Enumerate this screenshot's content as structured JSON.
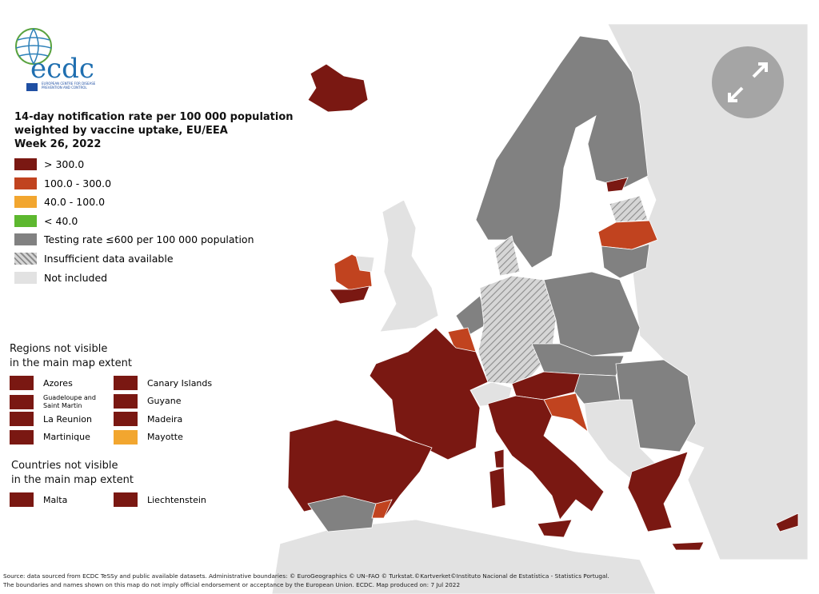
{
  "logo": {
    "name": "ecdc",
    "subtitle": "EUROPEAN CENTRE FOR DISEASE PREVENTION AND CONTROL"
  },
  "legend": {
    "title": [
      "14-day notification rate per 100 000 population",
      "weighted by vaccine uptake, EU/EEA",
      "Week 26, 2022"
    ],
    "items": [
      {
        "label": "> 300.0",
        "color": "#7a1812"
      },
      {
        "label": "100.0 - 300.0",
        "color": "#c1431f"
      },
      {
        "label": "40.0 - 100.0",
        "color": "#f2a62f"
      },
      {
        "label": "< 40.0",
        "color": "#5db82f"
      },
      {
        "label": "Testing rate ≤600 per 100 000 population",
        "color": "#818181"
      },
      {
        "label": "Insufficient data available",
        "color": "#a5a5a5",
        "pattern": "hatched"
      },
      {
        "label": "Not included",
        "color": "#e2e2e2"
      }
    ]
  },
  "regions": {
    "title": [
      "Regions not visible",
      "in the main map extent"
    ],
    "items": [
      {
        "label": "Azores",
        "color": "#7a1812"
      },
      {
        "label": "Canary Islands",
        "color": "#7a1812"
      },
      {
        "label": "Guadeloupe and Saint Martin",
        "color": "#7a1812"
      },
      {
        "label": "Guyane",
        "color": "#7a1812"
      },
      {
        "label": "La Reunion",
        "color": "#7a1812"
      },
      {
        "label": "Madeira",
        "color": "#7a1812"
      },
      {
        "label": "Martinique",
        "color": "#7a1812"
      },
      {
        "label": "Mayotte",
        "color": "#f2a62f"
      }
    ]
  },
  "countries": {
    "title": [
      "Countries not visible",
      "in the main map extent"
    ],
    "items": [
      {
        "label": "Malta",
        "color": "#7a1812"
      },
      {
        "label": "Liechtenstein",
        "color": "#7a1812"
      }
    ]
  },
  "source": [
    "Source: data sourced from ECDC TeSSy and public available datasets. Administrative boundaries: © EuroGeographics © UN–FAO © Turkstat.©Kartverket©Instituto Nacional de Estatística - Statistics Portugal.",
    "The boundaries and names shown on this map do not imply official endorsement or acceptance by the European Union. ECDC. Map produced on: 7 Jul 2022"
  ]
}
